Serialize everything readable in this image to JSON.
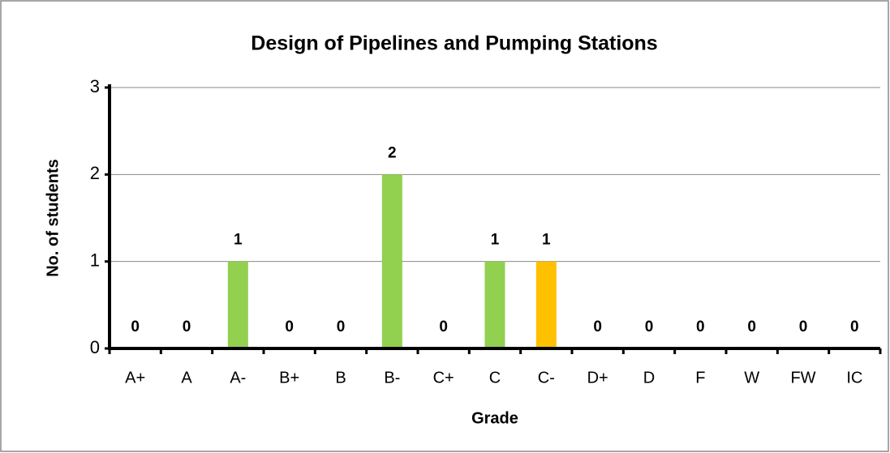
{
  "chart_data": {
    "type": "bar",
    "title": "Design of Pipelines and Pumping Stations",
    "x_label": "Grade",
    "y_label": "No. of students",
    "categories": [
      "A+",
      "A",
      "A-",
      "B+",
      "B",
      "B-",
      "C+",
      "C",
      "C-",
      "D+",
      "D",
      "F",
      "W",
      "FW",
      "IC"
    ],
    "values": [
      0,
      0,
      1,
      0,
      0,
      2,
      0,
      1,
      1,
      0,
      0,
      0,
      0,
      0,
      0
    ],
    "colors": [
      "#92d050",
      "#92d050",
      "#92d050",
      "#92d050",
      "#92d050",
      "#92d050",
      "#92d050",
      "#92d050",
      "#ffc000",
      "#92d050",
      "#92d050",
      "#92d050",
      "#92d050",
      "#92d050",
      "#92d050"
    ],
    "ylim": [
      0,
      3
    ],
    "yticks": [
      0,
      1,
      2,
      3
    ],
    "grid": true
  }
}
